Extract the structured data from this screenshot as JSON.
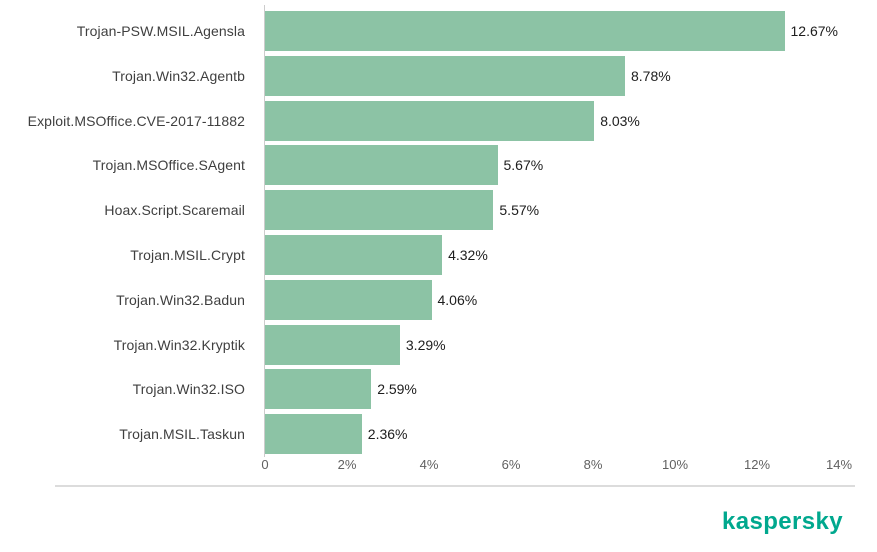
{
  "chart_data": {
    "type": "bar",
    "orientation": "horizontal",
    "title": "",
    "xlabel": "",
    "ylabel": "",
    "categories": [
      "Trojan-PSW.MSIL.Agensla",
      "Trojan.Win32.Agentb",
      "Exploit.MSOffice.CVE-2017-11882",
      "Trojan.MSOffice.SAgent",
      "Hoax.Script.Scaremail",
      "Trojan.MSIL.Crypt",
      "Trojan.Win32.Badun",
      "Trojan.Win32.Kryptik",
      "Trojan.Win32.ISO",
      "Trojan.MSIL.Taskun"
    ],
    "values": [
      12.67,
      8.78,
      8.03,
      5.67,
      5.57,
      4.32,
      4.06,
      3.29,
      2.59,
      2.36
    ],
    "value_labels": [
      "12.67%",
      "8.78%",
      "8.03%",
      "5.67%",
      "5.57%",
      "4.32%",
      "4.06%",
      "3.29%",
      "2.59%",
      "2.36%"
    ],
    "xlim": [
      0,
      14
    ],
    "xtick_values": [
      0,
      2,
      4,
      6,
      8,
      10,
      12,
      14
    ],
    "xtick_labels": [
      "0",
      "2%",
      "4%",
      "6%",
      "8%",
      "10%",
      "12%",
      "14%"
    ],
    "grid": false,
    "legend": false,
    "bar_color": "#8cc3a5",
    "axis_line_color": "#cccccc"
  },
  "footer": {
    "logo_text": "kaspersky",
    "logo_color": "#00a88e"
  }
}
